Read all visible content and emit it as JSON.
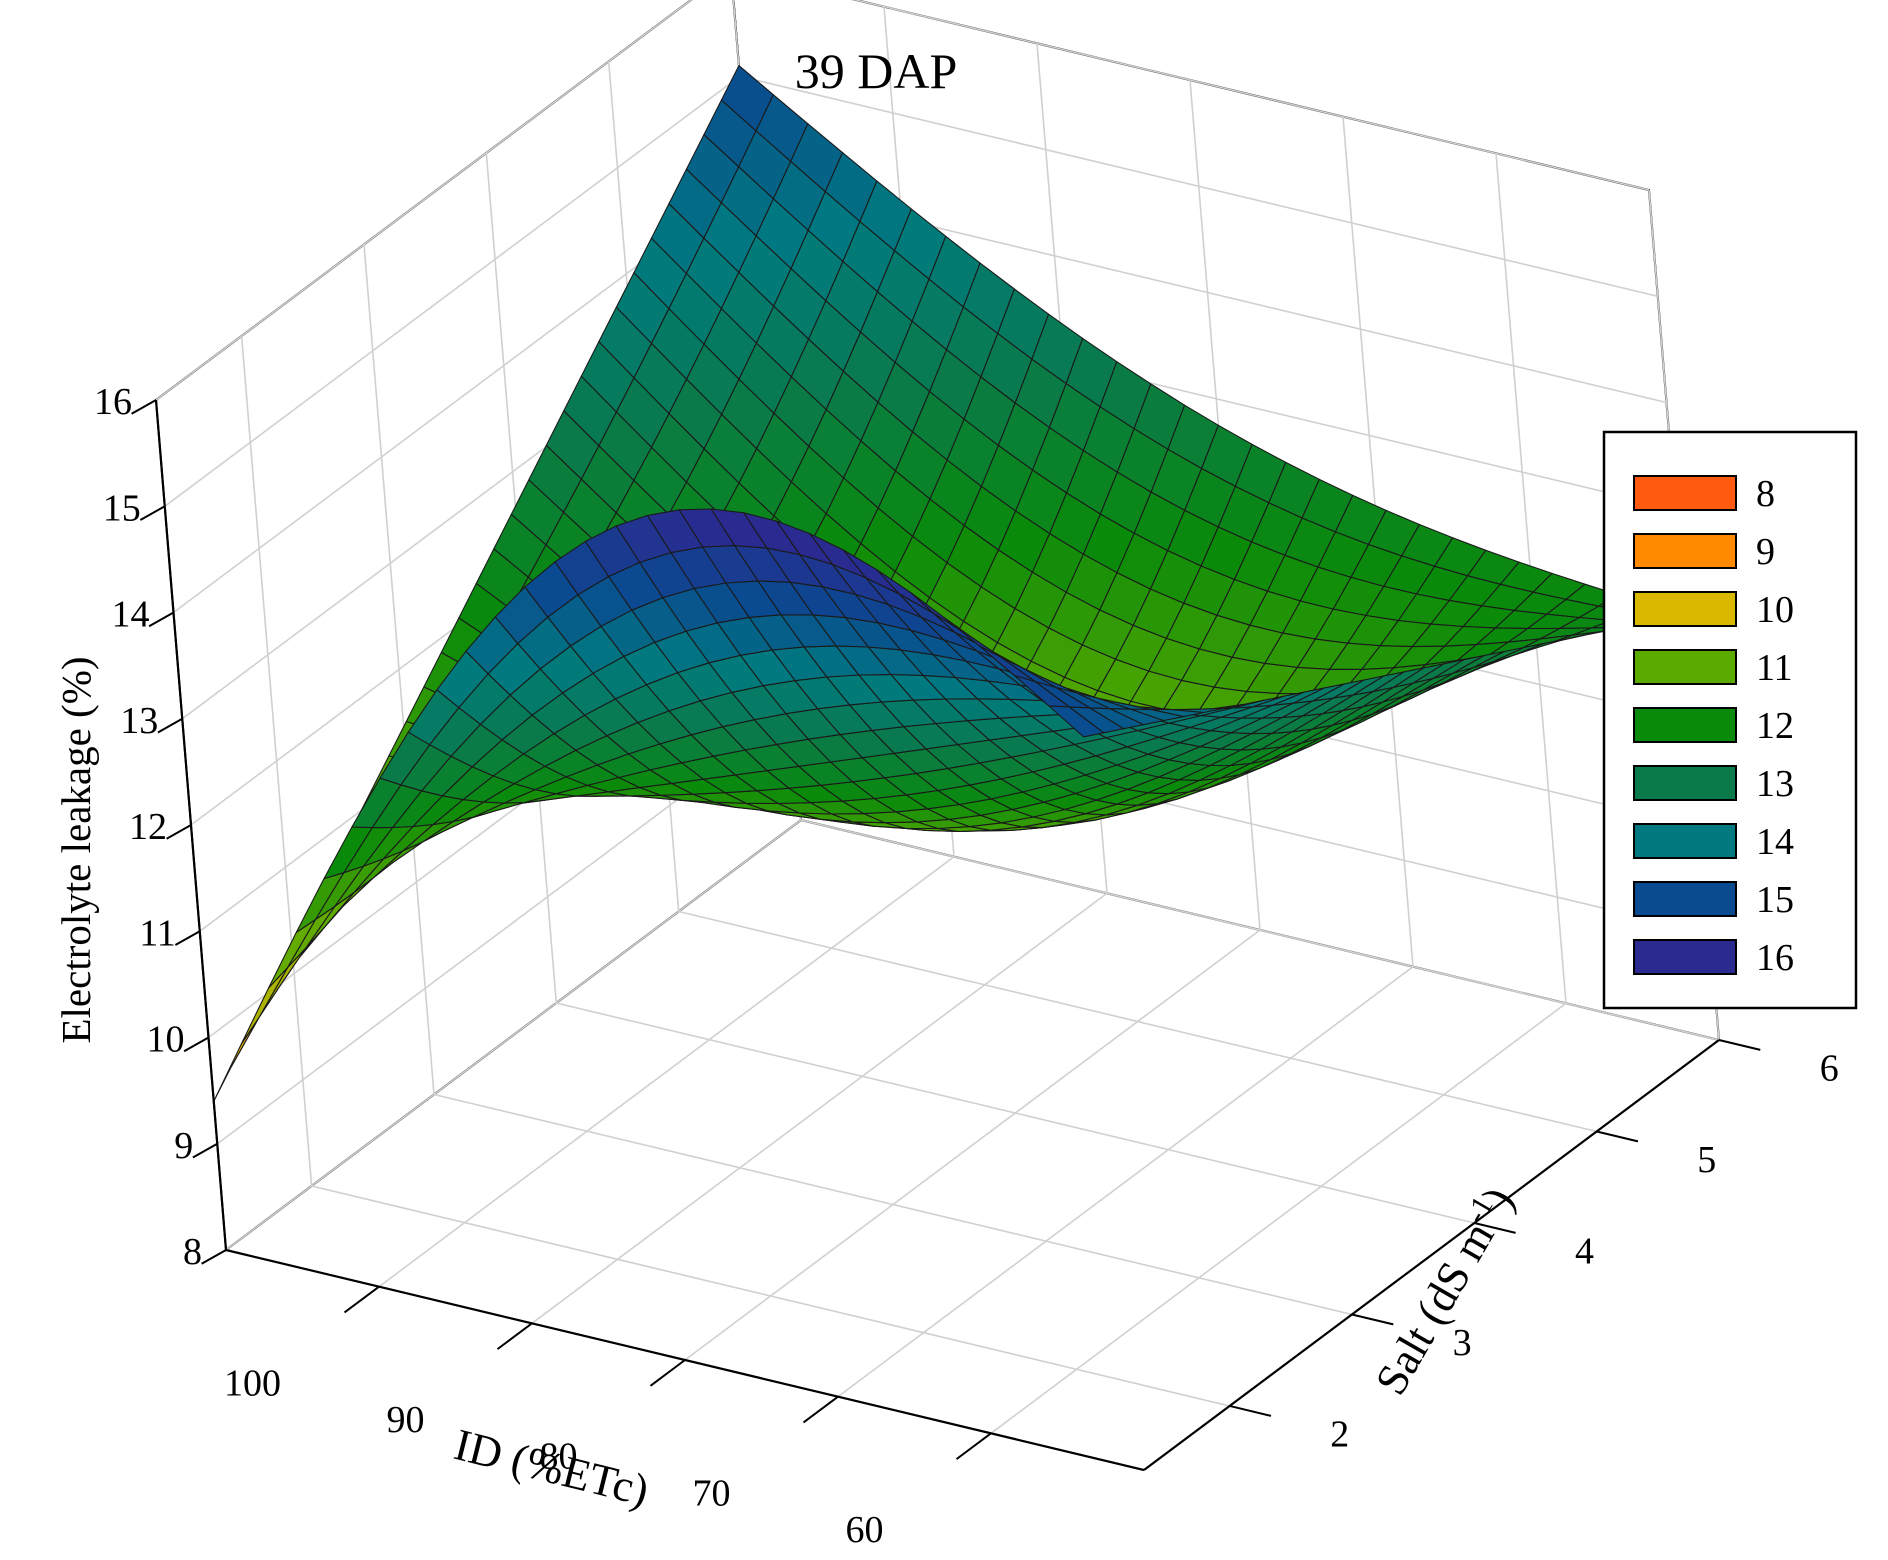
{
  "chart_data": {
    "type": "surface3d",
    "title": "39 DAP",
    "zlabel": "Electrolyte leakage (%)",
    "xlabel": "ID (%ETc)",
    "ylabel": "Salt (dS m",
    "ylabel_sup": "-1",
    "ylabel_close": ")",
    "x_ticks": [
      "100",
      "90",
      "80",
      "70",
      "60"
    ],
    "x_tick_values": [
      100,
      90,
      80,
      70,
      60
    ],
    "xlim": [
      50,
      110
    ],
    "y_ticks": [
      "2",
      "3",
      "4",
      "5",
      "6"
    ],
    "y_tick_values": [
      2,
      3,
      4,
      5,
      6
    ],
    "ylim": [
      1.3,
      6
    ],
    "z_ticks": [
      "8",
      "9",
      "10",
      "11",
      "12",
      "13",
      "14",
      "15",
      "16"
    ],
    "z_tick_values": [
      8,
      9,
      10,
      11,
      12,
      13,
      14,
      15,
      16
    ],
    "zlim": [
      8,
      16
    ],
    "surface_corners": [
      {
        "id": 110,
        "salt": 1.3,
        "el": 9.4
      },
      {
        "id": 110,
        "salt": 6,
        "el": 15.1
      },
      {
        "id": 50,
        "salt": 6,
        "el": 12.0
      },
      {
        "id": 50,
        "salt": 1.3,
        "el": 14.9
      }
    ],
    "grid": true,
    "legend_position": "right",
    "legend": [
      {
        "label": "8",
        "color": "#ff5a10"
      },
      {
        "label": "9",
        "color": "#ff8a00"
      },
      {
        "label": "10",
        "color": "#d9b800"
      },
      {
        "label": "11",
        "color": "#5aaa00"
      },
      {
        "label": "12",
        "color": "#0a8a0a"
      },
      {
        "label": "13",
        "color": "#0a7a4a"
      },
      {
        "label": "14",
        "color": "#007a80"
      },
      {
        "label": "15",
        "color": "#0a4a90"
      },
      {
        "label": "16",
        "color": "#2a2a90"
      }
    ]
  }
}
